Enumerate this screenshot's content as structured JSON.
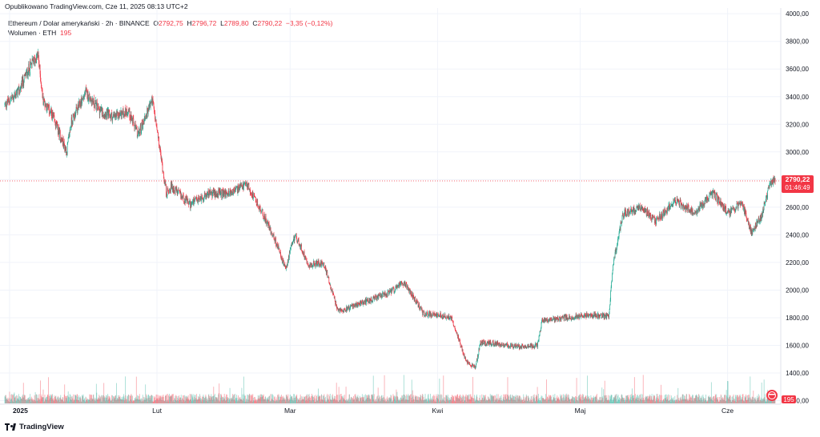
{
  "header": {
    "published": "Opublikowano TradingView.com, Cze 11, 2025 08:13 UTC+2"
  },
  "legend": {
    "symbol": "Ethereum / Dolar amerykański · 2h · BINANCE",
    "o_label": "O",
    "o_value": "2792,75",
    "h_label": "H",
    "h_value": "2796,72",
    "l_label": "L",
    "l_value": "2789,80",
    "c_label": "C",
    "c_value": "2790,22",
    "change": "−3,35 (−0,12%)",
    "volume_label": "Wolumen · ETH",
    "volume_value": "195"
  },
  "branding": {
    "logo_text": "TradingView"
  },
  "colors": {
    "up": "#22ab94",
    "down": "#f23645",
    "text": "#131722",
    "grid": "#f0f3fa"
  },
  "chart_data": {
    "type": "candlestick",
    "series_name": "Ethereum / Dolar amerykański",
    "interval": "2h",
    "y_ticks": [
      "4000,00",
      "3800,00",
      "3600,00",
      "3400,00",
      "3200,00",
      "3000,00",
      "2800,00",
      "2600,00",
      "2400,00",
      "2200,00",
      "2000,00",
      "1800,00",
      "1600,00",
      "1400,00",
      "1200,00"
    ],
    "y_tick_values": [
      4000,
      3800,
      3600,
      3400,
      3200,
      3000,
      2800,
      2600,
      2400,
      2200,
      2000,
      1800,
      1600,
      1400,
      1200
    ],
    "ylim": [
      1180,
      4030
    ],
    "x_ticks": [
      "2025",
      "Lut",
      "Mar",
      "Kwi",
      "Maj",
      "Cze"
    ],
    "x_tick_dates": [
      "2025-01-01",
      "2025-02-01",
      "2025-03-01",
      "2025-04-01",
      "2025-05-01",
      "2025-06-01"
    ],
    "xlim": [
      "2024-12-31",
      "2025-06-11"
    ],
    "price_path": [
      {
        "date": "2024-12-31",
        "price": 3340
      },
      {
        "date": "2025-01-03",
        "price": 3440
      },
      {
        "date": "2025-01-05",
        "price": 3600
      },
      {
        "date": "2025-01-07",
        "price": 3700
      },
      {
        "date": "2025-01-08",
        "price": 3380
      },
      {
        "date": "2025-01-10",
        "price": 3260
      },
      {
        "date": "2025-01-13",
        "price": 3000
      },
      {
        "date": "2025-01-14",
        "price": 3220
      },
      {
        "date": "2025-01-17",
        "price": 3430
      },
      {
        "date": "2025-01-20",
        "price": 3300
      },
      {
        "date": "2025-01-23",
        "price": 3250
      },
      {
        "date": "2025-01-26",
        "price": 3300
      },
      {
        "date": "2025-01-28",
        "price": 3120
      },
      {
        "date": "2025-01-31",
        "price": 3380
      },
      {
        "date": "2025-02-03",
        "price": 2700
      },
      {
        "date": "2025-02-04",
        "price": 2750
      },
      {
        "date": "2025-02-08",
        "price": 2620
      },
      {
        "date": "2025-02-12",
        "price": 2700
      },
      {
        "date": "2025-02-16",
        "price": 2700
      },
      {
        "date": "2025-02-20",
        "price": 2760
      },
      {
        "date": "2025-02-24",
        "price": 2500
      },
      {
        "date": "2025-02-26",
        "price": 2350
      },
      {
        "date": "2025-02-28",
        "price": 2150
      },
      {
        "date": "2025-03-02",
        "price": 2400
      },
      {
        "date": "2025-03-05",
        "price": 2180
      },
      {
        "date": "2025-03-08",
        "price": 2200
      },
      {
        "date": "2025-03-11",
        "price": 1850
      },
      {
        "date": "2025-03-14",
        "price": 1880
      },
      {
        "date": "2025-03-18",
        "price": 1930
      },
      {
        "date": "2025-03-22",
        "price": 1980
      },
      {
        "date": "2025-03-25",
        "price": 2060
      },
      {
        "date": "2025-03-29",
        "price": 1830
      },
      {
        "date": "2025-04-01",
        "price": 1820
      },
      {
        "date": "2025-04-04",
        "price": 1800
      },
      {
        "date": "2025-04-07",
        "price": 1480
      },
      {
        "date": "2025-04-09",
        "price": 1440
      },
      {
        "date": "2025-04-10",
        "price": 1620
      },
      {
        "date": "2025-04-14",
        "price": 1610
      },
      {
        "date": "2025-04-18",
        "price": 1590
      },
      {
        "date": "2025-04-22",
        "price": 1600
      },
      {
        "date": "2025-04-23",
        "price": 1780
      },
      {
        "date": "2025-04-28",
        "price": 1800
      },
      {
        "date": "2025-05-03",
        "price": 1820
      },
      {
        "date": "2025-05-07",
        "price": 1810
      },
      {
        "date": "2025-05-08",
        "price": 2200
      },
      {
        "date": "2025-05-10",
        "price": 2550
      },
      {
        "date": "2025-05-14",
        "price": 2600
      },
      {
        "date": "2025-05-17",
        "price": 2500
      },
      {
        "date": "2025-05-21",
        "price": 2650
      },
      {
        "date": "2025-05-25",
        "price": 2560
      },
      {
        "date": "2025-05-29",
        "price": 2700
      },
      {
        "date": "2025-06-01",
        "price": 2560
      },
      {
        "date": "2025-06-04",
        "price": 2630
      },
      {
        "date": "2025-06-06",
        "price": 2420
      },
      {
        "date": "2025-06-08",
        "price": 2520
      },
      {
        "date": "2025-06-10",
        "price": 2780
      },
      {
        "date": "2025-06-11",
        "price": 2790
      }
    ],
    "last_price": 2790.22,
    "last_price_label": "2790,22",
    "countdown_label": "01:46:49",
    "volume_last_label": "195",
    "grid": true,
    "legend_position": "top-left"
  }
}
